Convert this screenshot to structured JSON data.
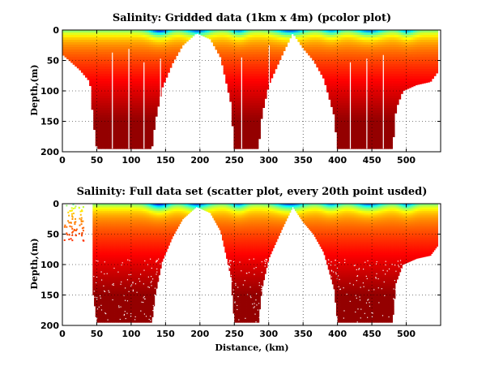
{
  "chart_data": [
    {
      "type": "heatmap",
      "title": "Salinity: Gridded data (1km x 4m) (pcolor plot)",
      "xlabel": "",
      "ylabel": "Depth,(m)",
      "xlim": [
        0,
        550
      ],
      "ylim": [
        200,
        0
      ],
      "xticks": [
        0,
        50,
        100,
        150,
        200,
        250,
        300,
        350,
        400,
        450,
        500
      ],
      "yticks": [
        0,
        50,
        100,
        150,
        200
      ],
      "grid": true,
      "colormap": "jet",
      "bottom_depth_profile": {
        "x": [
          0,
          25,
          40,
          45,
          50,
          130,
          135,
          145,
          160,
          175,
          195,
          215,
          230,
          245,
          250,
          285,
          290,
          300,
          320,
          335,
          350,
          365,
          380,
          395,
          400,
          480,
          485,
          495,
          515,
          535,
          545
        ],
        "y": [
          40,
          65,
          85,
          150,
          195,
          195,
          150,
          95,
          55,
          25,
          5,
          15,
          45,
          120,
          195,
          195,
          140,
          90,
          40,
          5,
          30,
          50,
          80,
          140,
          195,
          195,
          130,
          100,
          90,
          85,
          70
        ]
      }
    },
    {
      "type": "scatter",
      "title": "Salinity: Full data set (scatter plot, every 20th point usded)",
      "xlabel": "Distance, (km)",
      "ylabel": "Depth,(m)",
      "xlim": [
        0,
        550
      ],
      "ylim": [
        200,
        0
      ],
      "xticks": [
        0,
        50,
        100,
        150,
        200,
        250,
        300,
        350,
        400,
        450,
        500
      ],
      "yticks": [
        0,
        50,
        100,
        150,
        200
      ],
      "grid": true,
      "colormap": "jet",
      "bottom_depth_profile": {
        "x": [
          0,
          25,
          40,
          45,
          50,
          130,
          135,
          145,
          160,
          175,
          195,
          215,
          230,
          245,
          250,
          285,
          290,
          300,
          320,
          335,
          350,
          365,
          380,
          395,
          400,
          480,
          485,
          495,
          515,
          535,
          545
        ],
        "y": [
          40,
          65,
          85,
          150,
          195,
          195,
          150,
          95,
          55,
          25,
          5,
          15,
          45,
          120,
          195,
          195,
          140,
          90,
          40,
          5,
          30,
          50,
          80,
          140,
          195,
          195,
          130,
          100,
          90,
          85,
          70
        ]
      }
    }
  ]
}
